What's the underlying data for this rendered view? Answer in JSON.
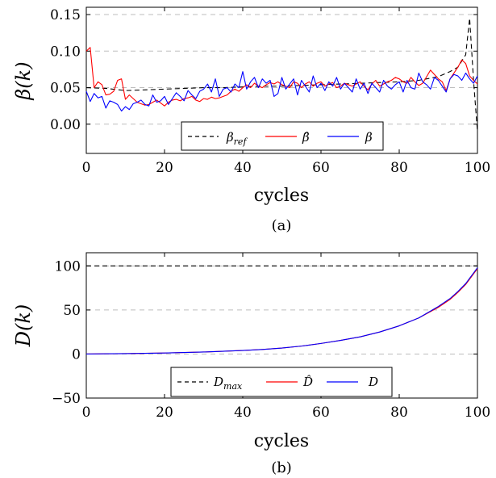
{
  "chart_data": [
    {
      "type": "line",
      "caption": "(a)",
      "xlabel": "cycles",
      "ylabel": "β(k)",
      "xlim": [
        0,
        100
      ],
      "ylim": [
        -0.04,
        0.16
      ],
      "xticks": [
        "0",
        "20",
        "40",
        "60",
        "80",
        "100"
      ],
      "yticks": [
        "0.00",
        "0.05",
        "0.10",
        "0.15"
      ],
      "grid": "horizontal dashed",
      "legend_position": "bottom-center",
      "series": [
        {
          "name": "βref",
          "color": "#000000",
          "style": "dashed",
          "x": [
            0,
            5,
            10,
            15,
            20,
            25,
            30,
            35,
            40,
            45,
            50,
            55,
            60,
            65,
            70,
            75,
            80,
            85,
            90,
            93,
            95,
            97,
            98,
            99,
            100
          ],
          "values": [
            0.05,
            0.049,
            0.046,
            0.047,
            0.048,
            0.049,
            0.05,
            0.05,
            0.051,
            0.052,
            0.052,
            0.053,
            0.054,
            0.055,
            0.056,
            0.057,
            0.058,
            0.06,
            0.065,
            0.072,
            0.078,
            0.095,
            0.145,
            0.06,
            -0.01
          ]
        },
        {
          "name": "β̂",
          "color": "#ff0000",
          "style": "solid",
          "x": [
            0,
            1,
            2,
            3,
            4,
            5,
            6,
            7,
            8,
            9,
            10,
            11,
            12,
            13,
            14,
            15,
            16,
            17,
            18,
            19,
            20,
            21,
            22,
            23,
            24,
            25,
            26,
            27,
            28,
            29,
            30,
            31,
            32,
            33,
            34,
            35,
            36,
            37,
            38,
            39,
            40,
            41,
            42,
            43,
            44,
            45,
            46,
            47,
            48,
            49,
            50,
            51,
            52,
            53,
            54,
            55,
            56,
            57,
            58,
            59,
            60,
            61,
            62,
            63,
            64,
            65,
            66,
            67,
            68,
            69,
            70,
            71,
            72,
            73,
            74,
            75,
            76,
            77,
            78,
            79,
            80,
            81,
            82,
            83,
            84,
            85,
            86,
            87,
            88,
            89,
            90,
            91,
            92,
            93,
            94,
            95,
            96,
            97,
            98,
            99,
            100
          ],
          "values": [
            0.1,
            0.105,
            0.05,
            0.058,
            0.054,
            0.04,
            0.041,
            0.045,
            0.06,
            0.062,
            0.034,
            0.04,
            0.035,
            0.03,
            0.028,
            0.026,
            0.027,
            0.03,
            0.033,
            0.029,
            0.025,
            0.03,
            0.033,
            0.034,
            0.032,
            0.035,
            0.036,
            0.038,
            0.033,
            0.031,
            0.035,
            0.034,
            0.037,
            0.035,
            0.036,
            0.038,
            0.04,
            0.045,
            0.048,
            0.045,
            0.05,
            0.054,
            0.05,
            0.056,
            0.052,
            0.05,
            0.054,
            0.057,
            0.055,
            0.058,
            0.054,
            0.052,
            0.05,
            0.058,
            0.056,
            0.05,
            0.055,
            0.058,
            0.052,
            0.056,
            0.058,
            0.052,
            0.055,
            0.057,
            0.05,
            0.052,
            0.056,
            0.054,
            0.052,
            0.055,
            0.058,
            0.052,
            0.047,
            0.055,
            0.06,
            0.052,
            0.055,
            0.058,
            0.06,
            0.064,
            0.062,
            0.058,
            0.056,
            0.064,
            0.058,
            0.053,
            0.056,
            0.065,
            0.074,
            0.068,
            0.062,
            0.058,
            0.046,
            0.062,
            0.07,
            0.078,
            0.088,
            0.083,
            0.066,
            0.06,
            0.055
          ]
        },
        {
          "name": "β",
          "color": "#0000ff",
          "style": "solid",
          "x": [
            0,
            1,
            2,
            3,
            4,
            5,
            6,
            7,
            8,
            9,
            10,
            11,
            12,
            13,
            14,
            15,
            16,
            17,
            18,
            19,
            20,
            21,
            22,
            23,
            24,
            25,
            26,
            27,
            28,
            29,
            30,
            31,
            32,
            33,
            34,
            35,
            36,
            37,
            38,
            39,
            40,
            41,
            42,
            43,
            44,
            45,
            46,
            47,
            48,
            49,
            50,
            51,
            52,
            53,
            54,
            55,
            56,
            57,
            58,
            59,
            60,
            61,
            62,
            63,
            64,
            65,
            66,
            67,
            68,
            69,
            70,
            71,
            72,
            73,
            74,
            75,
            76,
            77,
            78,
            79,
            80,
            81,
            82,
            83,
            84,
            85,
            86,
            87,
            88,
            89,
            90,
            91,
            92,
            93,
            94,
            95,
            96,
            97,
            98,
            99,
            100
          ],
          "values": [
            0.045,
            0.031,
            0.042,
            0.036,
            0.038,
            0.022,
            0.032,
            0.03,
            0.027,
            0.018,
            0.024,
            0.02,
            0.028,
            0.03,
            0.033,
            0.027,
            0.025,
            0.04,
            0.03,
            0.032,
            0.038,
            0.027,
            0.035,
            0.043,
            0.038,
            0.032,
            0.046,
            0.04,
            0.035,
            0.045,
            0.048,
            0.055,
            0.044,
            0.062,
            0.038,
            0.048,
            0.05,
            0.044,
            0.055,
            0.05,
            0.072,
            0.048,
            0.058,
            0.064,
            0.05,
            0.062,
            0.056,
            0.06,
            0.038,
            0.042,
            0.064,
            0.048,
            0.055,
            0.062,
            0.04,
            0.06,
            0.052,
            0.044,
            0.066,
            0.05,
            0.056,
            0.046,
            0.058,
            0.052,
            0.064,
            0.048,
            0.056,
            0.05,
            0.044,
            0.062,
            0.048,
            0.056,
            0.042,
            0.056,
            0.05,
            0.044,
            0.06,
            0.052,
            0.048,
            0.054,
            0.058,
            0.044,
            0.06,
            0.05,
            0.048,
            0.07,
            0.058,
            0.054,
            0.048,
            0.064,
            0.06,
            0.052,
            0.044,
            0.062,
            0.068,
            0.066,
            0.06,
            0.07,
            0.062,
            0.056,
            0.066
          ]
        }
      ]
    },
    {
      "type": "line",
      "caption": "(b)",
      "xlabel": "cycles",
      "ylabel": "D(k)",
      "xlim": [
        0,
        100
      ],
      "ylim": [
        -50,
        115
      ],
      "xticks": [
        "0",
        "20",
        "40",
        "60",
        "80",
        "100"
      ],
      "yticks": [
        "−50",
        "0",
        "50",
        "100"
      ],
      "grid": "horizontal dashed",
      "legend_position": "bottom-center",
      "series": [
        {
          "name": "Dmax",
          "color": "#000000",
          "style": "dashed",
          "x": [
            0,
            100
          ],
          "values": [
            100,
            100
          ]
        },
        {
          "name": "D̂",
          "color": "#ff0000",
          "style": "solid",
          "x": [
            0,
            10,
            20,
            30,
            40,
            45,
            50,
            55,
            60,
            65,
            70,
            75,
            80,
            85,
            90,
            93,
            95,
            97,
            100
          ],
          "values": [
            0,
            0.5,
            1.2,
            2.3,
            4,
            5.2,
            6.8,
            9,
            12,
            15.5,
            19.5,
            25,
            32,
            41,
            53,
            62,
            70,
            79,
            97
          ]
        },
        {
          "name": "D",
          "color": "#0000ff",
          "style": "solid",
          "x": [
            0,
            10,
            20,
            30,
            40,
            45,
            50,
            55,
            60,
            65,
            70,
            75,
            80,
            85,
            90,
            93,
            95,
            97,
            100
          ],
          "values": [
            0,
            0.5,
            1.2,
            2.3,
            4,
            5.2,
            6.8,
            9,
            12,
            15.5,
            19.5,
            25,
            32,
            41,
            54,
            63,
            71,
            80,
            98
          ]
        }
      ]
    }
  ]
}
